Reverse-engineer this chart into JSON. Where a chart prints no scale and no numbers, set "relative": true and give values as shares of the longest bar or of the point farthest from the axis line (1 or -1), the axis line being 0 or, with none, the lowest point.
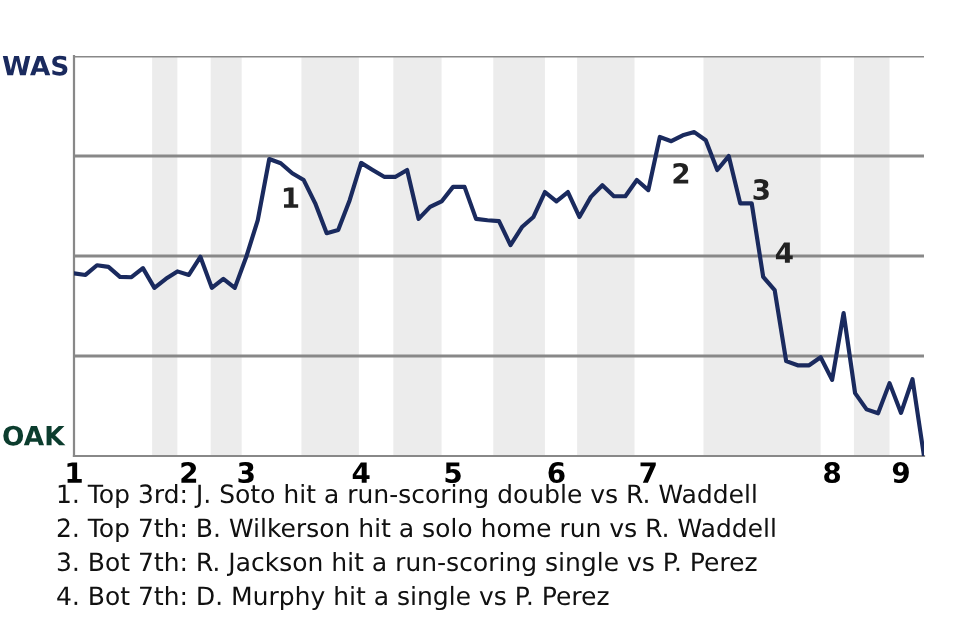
{
  "chart_data": {
    "type": "line",
    "relative": true,
    "categories": [
      "1",
      null,
      null,
      null,
      null,
      null,
      null,
      null,
      null,
      null,
      "2",
      null,
      null,
      null,
      null,
      "3",
      null,
      null,
      null,
      null,
      null,
      null,
      null,
      null,
      null,
      "4",
      null,
      null,
      null,
      null,
      null,
      null,
      null,
      "5",
      null,
      null,
      null,
      null,
      null,
      null,
      null,
      null,
      "6",
      null,
      null,
      null,
      null,
      null,
      null,
      null,
      "7",
      null,
      null,
      null,
      null,
      null,
      null,
      null,
      null,
      null,
      null,
      null,
      null,
      null,
      null,
      null,
      "8",
      null,
      null,
      null,
      null,
      null,
      "9",
      null,
      null
    ],
    "series": [
      {
        "color": "#1a2a5e",
        "values": [
          0.564,
          0.559,
          0.589,
          0.584,
          0.553,
          0.552,
          0.58,
          0.519,
          0.547,
          0.57,
          0.559,
          0.615,
          0.519,
          0.547,
          0.519,
          0.615,
          0.728,
          0.917,
          0.904,
          0.873,
          0.852,
          0.78,
          0.688,
          0.698,
          0.79,
          0.905,
          0.883,
          0.862,
          0.862,
          0.883,
          0.732,
          0.769,
          0.786,
          0.831,
          0.831,
          0.732,
          0.728,
          0.725,
          0.651,
          0.707,
          0.738,
          0.815,
          0.786,
          0.815,
          0.738,
          0.8,
          0.836,
          0.802,
          0.802,
          0.852,
          0.821,
          0.985,
          0.972,
          0.99,
          1,
          0.975,
          0.883,
          0.926,
          0.78,
          0.78,
          0.553,
          0.512,
          0.293,
          0.28,
          0.28,
          0.305,
          0.235,
          0.441,
          0.194,
          0.144,
          0.132,
          0.225,
          0.133,
          0.237,
          0
        ]
      }
    ],
    "grid": "y",
    "marker": "none",
    "line_style": "solid",
    "annotations": [
      "WAS",
      "OAK",
      "1",
      "2",
      "3",
      "4",
      "1. Top 3rd: J. Soto hit a run-scoring double vs R. Waddell",
      "2. Top 7th: B. Wilkerson hit a solo home run vs R. Waddell",
      "3. Bot 7th: R. Jackson hit a run-scoring single vs P. Perez",
      "4. Bot 7th: D. Murphy hit a single vs P. Perez"
    ]
  }
}
